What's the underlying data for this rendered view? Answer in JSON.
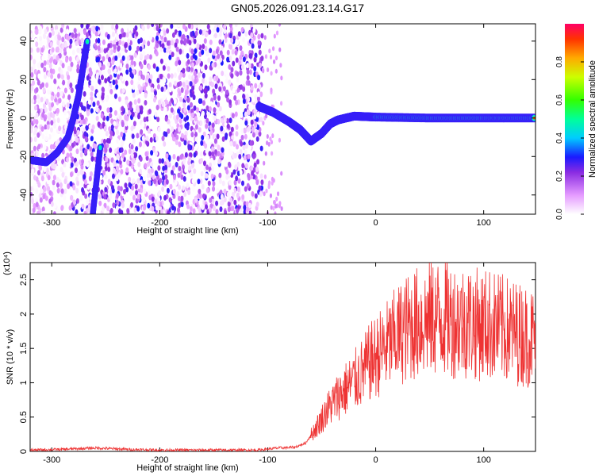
{
  "title": "GN05.2026.091.23.14.G17",
  "colors": {
    "snr_line": "#ee3333",
    "axis": "#000000"
  },
  "charts": [
    {
      "type": "heatmap",
      "xlabel": "Height of straight line (km)",
      "ylabel": "Frequency (Hz)",
      "xlim": [
        -320,
        148
      ],
      "ylim": [
        -50,
        49
      ],
      "xticks": [
        -300,
        -200,
        -100,
        0,
        100
      ],
      "yticks": [
        -40,
        -20,
        0,
        20,
        40
      ],
      "colorbar": {
        "label": "Normalized spectral amplitude",
        "range": [
          0,
          1
        ],
        "ticks": [
          0.0,
          0.2,
          0.4,
          0.6,
          0.8
        ]
      },
      "features": [
        {
          "desc": "broad noise region",
          "x_range": [
            -320,
            -105
          ],
          "y_range": [
            -50,
            49
          ]
        },
        {
          "desc": "steep track",
          "points": [
            [
              -318,
              -22
            ],
            [
              -305,
              -23
            ],
            [
              -295,
              -18
            ],
            [
              -285,
              -10
            ],
            [
              -280,
              0
            ],
            [
              -275,
              12
            ],
            [
              -270,
              30
            ],
            [
              -267,
              40
            ]
          ]
        },
        {
          "desc": "lower steep track",
          "points": [
            [
              -262,
              -50
            ],
            [
              -258,
              -30
            ],
            [
              -255,
              -15
            ]
          ]
        },
        {
          "desc": "main signal track",
          "points": [
            [
              -108,
              6
            ],
            [
              -95,
              3
            ],
            [
              -80,
              -2
            ],
            [
              -70,
              -6
            ],
            [
              -60,
              -12
            ],
            [
              -50,
              -8
            ],
            [
              -42,
              -3
            ],
            [
              -35,
              -1
            ],
            [
              -20,
              1
            ],
            [
              0,
              0.5
            ],
            [
              50,
              0
            ],
            [
              100,
              0
            ],
            [
              148,
              0
            ]
          ]
        }
      ]
    },
    {
      "type": "line",
      "xlabel": "Height of straight line (km)",
      "ylabel": "SNR (10 * v/v)",
      "yscale_label": "(x10⁴)",
      "xlim": [
        -320,
        148
      ],
      "ylim": [
        0,
        2.75
      ],
      "xticks": [
        -300,
        -200,
        -100,
        0,
        100
      ],
      "yticks": [
        0.0,
        0.5,
        1.0,
        1.5,
        2.0,
        2.5
      ],
      "x": [
        -320,
        -290,
        -260,
        -230,
        -200,
        -170,
        -140,
        -110,
        -90,
        -75,
        -65,
        -55,
        -45,
        -35,
        -25,
        -15,
        -5,
        5,
        15,
        25,
        35,
        45,
        55,
        65,
        75,
        85,
        95,
        105,
        115,
        125,
        135,
        148
      ],
      "y": [
        0.02,
        0.03,
        0.05,
        0.03,
        0.02,
        0.02,
        0.02,
        0.02,
        0.05,
        0.06,
        0.12,
        0.35,
        0.6,
        0.8,
        0.95,
        1.1,
        1.3,
        1.45,
        1.6,
        1.75,
        1.85,
        1.9,
        1.95,
        1.95,
        1.9,
        1.9,
        1.85,
        1.85,
        1.8,
        1.75,
        1.7,
        1.65
      ]
    }
  ]
}
